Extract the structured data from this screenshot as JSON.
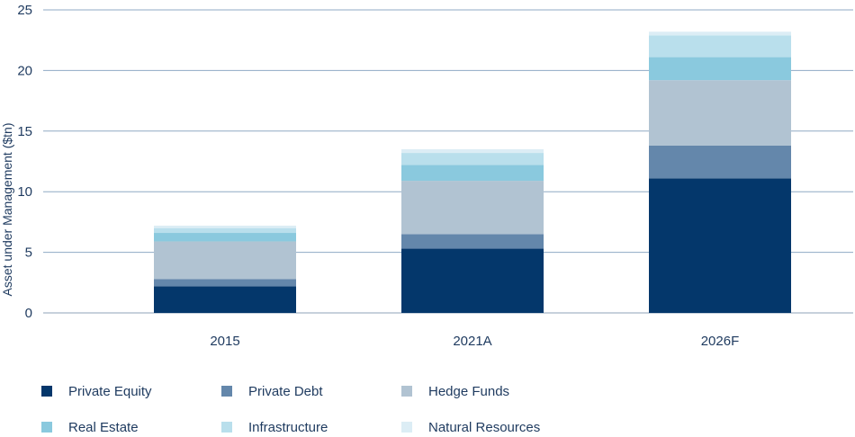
{
  "chart_data": {
    "type": "bar",
    "stacked": true,
    "title": "",
    "xlabel": "",
    "ylabel": "Asset under Management ($tn)",
    "ylim": [
      0,
      25
    ],
    "yticks": [
      0,
      5,
      10,
      15,
      20,
      25
    ],
    "grid": true,
    "legend_position": "bottom",
    "categories": [
      "2015",
      "2021A",
      "2026F"
    ],
    "series": [
      {
        "name": "Private Equity",
        "color": "#04376b",
        "values": [
          2.2,
          5.3,
          11.1
        ]
      },
      {
        "name": "Private Debt",
        "color": "#6487ab",
        "values": [
          0.6,
          1.2,
          2.7
        ]
      },
      {
        "name": "Hedge Funds",
        "color": "#b1c3d2",
        "values": [
          3.1,
          4.4,
          5.4
        ]
      },
      {
        "name": "Real Estate",
        "color": "#8ac9de",
        "values": [
          0.7,
          1.3,
          1.9
        ]
      },
      {
        "name": "Infrastructure",
        "color": "#b9dfec",
        "values": [
          0.4,
          1.0,
          1.8
        ]
      },
      {
        "name": "Natural Resources",
        "color": "#dcedf5",
        "values": [
          0.2,
          0.3,
          0.3
        ]
      }
    ]
  }
}
